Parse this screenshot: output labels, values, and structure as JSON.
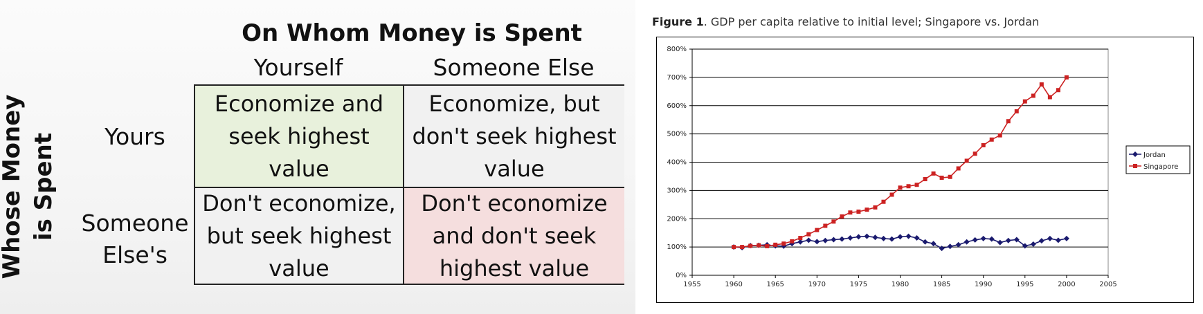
{
  "matrix": {
    "title": "On Whom Money is Spent",
    "column_headers": [
      "Yourself",
      "Someone Else"
    ],
    "side_title": "Whose Money\nis Spent",
    "row_headers": [
      "Yours",
      "Someone\nElse's"
    ],
    "cells": [
      {
        "text": "Economize and\nseek highest value",
        "color": "#e8f1dc"
      },
      {
        "text": "Economize, but\ndon't seek highest\nvalue",
        "color": "#f1f1f1"
      },
      {
        "text": "Don't economize,\nbut seek highest\nvalue",
        "color": "#f1f1f1"
      },
      {
        "text": "Don't economize\nand don't seek\nhighest value",
        "color": "#f5dede"
      }
    ]
  },
  "figure": {
    "caption_bold": "Figure 1",
    "caption_rest": ". GDP per capita relative to initial level; Singapore vs. Jordan"
  },
  "chart_data": {
    "type": "line",
    "title": "",
    "xlabel": "",
    "ylabel": "",
    "xlim": [
      1955,
      2005
    ],
    "ylim": [
      0,
      800
    ],
    "x_ticks": [
      "1955",
      "1960",
      "1965",
      "1970",
      "1975",
      "1980",
      "1985",
      "1990",
      "1995",
      "2000",
      "2005"
    ],
    "y_ticks": [
      "0%",
      "100%",
      "200%",
      "300%",
      "400%",
      "500%",
      "600%",
      "700%",
      "800%"
    ],
    "grid": "horizontal",
    "legend_position": "right",
    "x": [
      1960,
      1961,
      1962,
      1963,
      1964,
      1965,
      1966,
      1967,
      1968,
      1969,
      1970,
      1971,
      1972,
      1973,
      1974,
      1975,
      1976,
      1977,
      1978,
      1979,
      1980,
      1981,
      1982,
      1983,
      1984,
      1985,
      1986,
      1987,
      1988,
      1989,
      1990,
      1991,
      1992,
      1993,
      1994,
      1995,
      1996,
      1997,
      1998,
      1999,
      2000
    ],
    "series": [
      {
        "name": "Jordan",
        "color": "#1a1a6e",
        "marker": "diamond",
        "values": [
          100,
          98,
          105,
          106,
          108,
          104,
          103,
          112,
          118,
          124,
          119,
          123,
          126,
          128,
          132,
          136,
          138,
          134,
          130,
          128,
          136,
          138,
          132,
          118,
          112,
          95,
          102,
          108,
          118,
          125,
          130,
          128,
          116,
          123,
          126,
          104,
          110,
          122,
          130,
          124,
          130
        ]
      },
      {
        "name": "Singapore",
        "color": "#cc2222",
        "marker": "square",
        "values": [
          100,
          100,
          104,
          106,
          103,
          108,
          112,
          120,
          132,
          145,
          160,
          175,
          190,
          208,
          222,
          225,
          232,
          240,
          260,
          285,
          310,
          315,
          320,
          340,
          360,
          345,
          348,
          378,
          405,
          430,
          460,
          480,
          495,
          545,
          580,
          615,
          635,
          675,
          630,
          655,
          700
        ]
      }
    ]
  }
}
